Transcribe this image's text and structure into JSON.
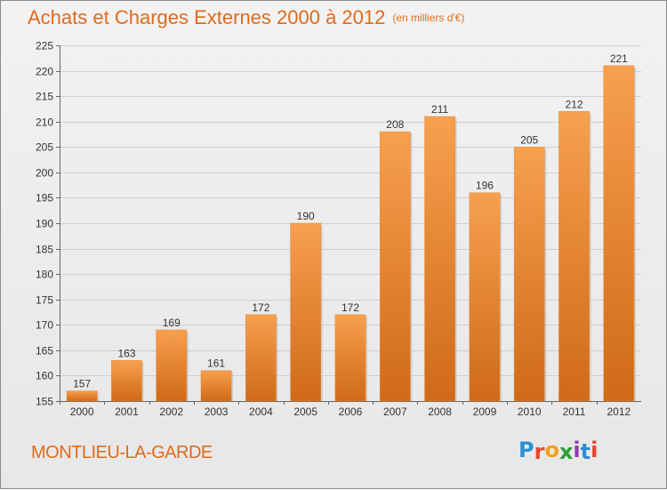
{
  "title": "Achats et Charges Externes 2000 à 2012",
  "unit": "(en milliers d'€)",
  "commune": "MONTLIEU-LA-GARDE",
  "brand": {
    "letters": [
      "P",
      "r",
      "o",
      "x",
      "i",
      "t",
      "i"
    ],
    "colors": [
      "#2d8fd5",
      "#e8462c",
      "#f0a11c",
      "#2f9c3a",
      "#8e3fb0",
      "#2d8fd5",
      "#e8462c"
    ]
  },
  "chart_data": {
    "type": "bar",
    "categories": [
      "2000",
      "2001",
      "2002",
      "2003",
      "2004",
      "2005",
      "2006",
      "2007",
      "2008",
      "2009",
      "2010",
      "2011",
      "2012"
    ],
    "values": [
      157,
      163,
      169,
      161,
      172,
      190,
      172,
      208,
      211,
      196,
      205,
      212,
      221
    ],
    "ylim": [
      155,
      225
    ],
    "yticks": [
      155,
      160,
      165,
      170,
      175,
      180,
      185,
      190,
      195,
      200,
      205,
      210,
      215,
      220,
      225
    ],
    "grid": true,
    "data_labels": true,
    "bar_color_top": "#f7a04e",
    "bar_color_bottom": "#cf6a18"
  }
}
